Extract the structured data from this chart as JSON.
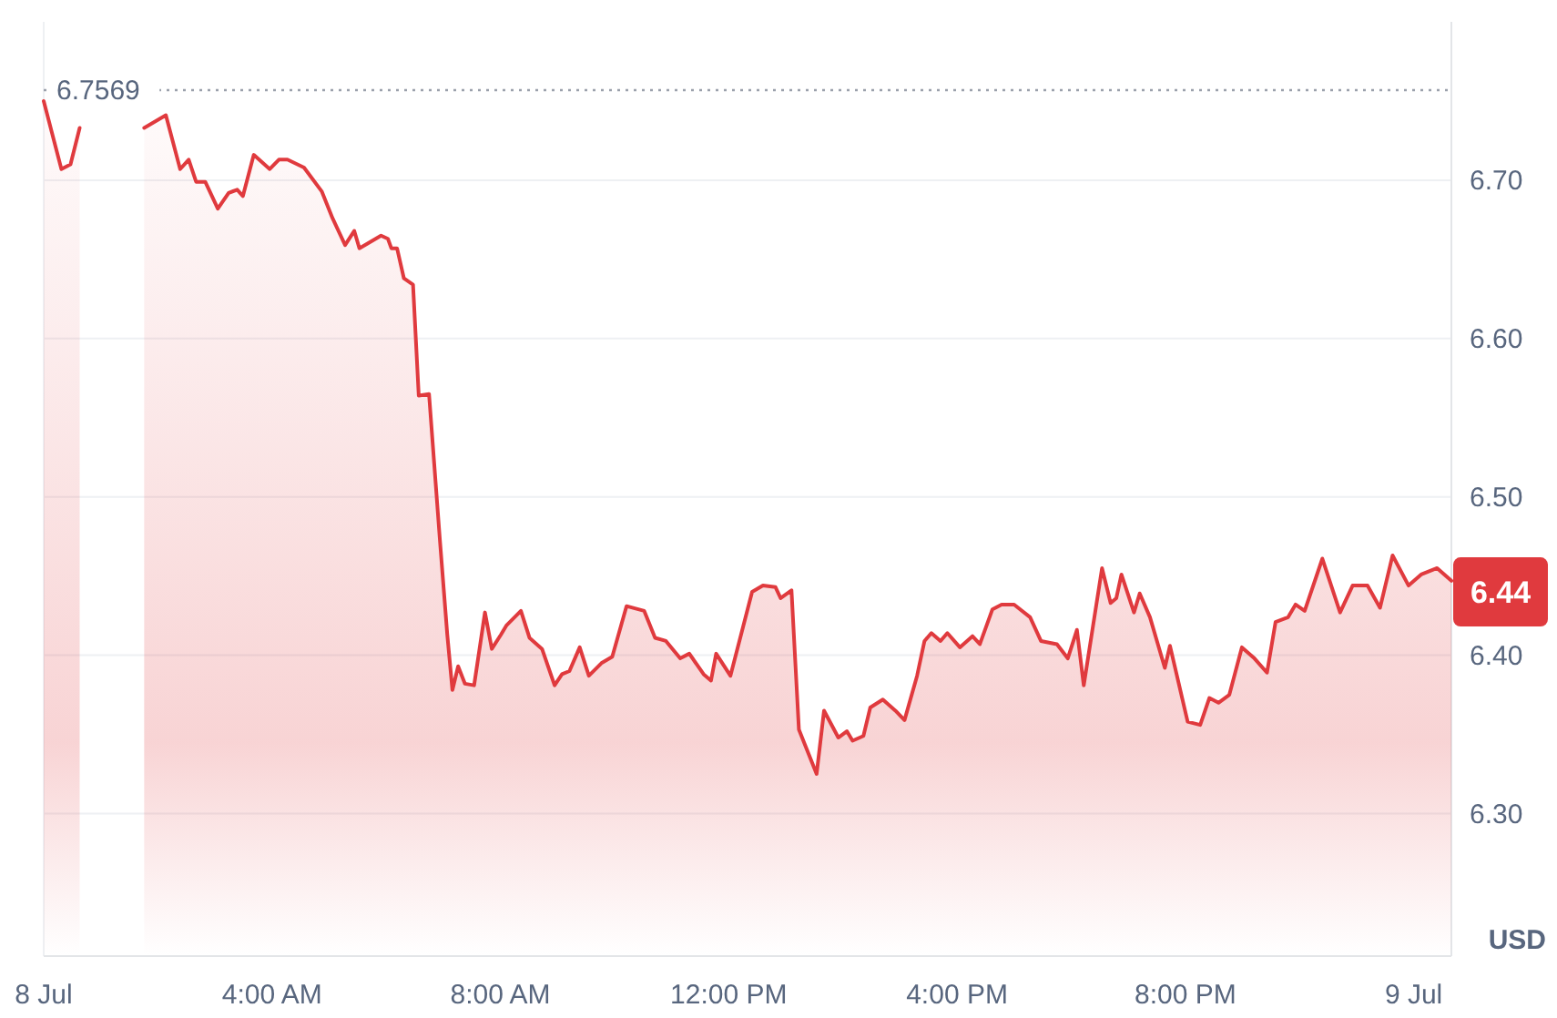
{
  "chart_data": {
    "type": "area",
    "ylabel": "USD",
    "xlim": [
      0,
      24.66
    ],
    "ylim": [
      6.21,
      6.8
    ],
    "xticks": [
      {
        "value": 0,
        "label": "8 Jul"
      },
      {
        "value": 4,
        "label": "4:00 AM"
      },
      {
        "value": 8,
        "label": "8:00 AM"
      },
      {
        "value": 12,
        "label": "12:00 PM"
      },
      {
        "value": 16,
        "label": "4:00 PM"
      },
      {
        "value": 20,
        "label": "8:00 PM"
      },
      {
        "value": 24,
        "label": "9 Jul"
      }
    ],
    "yticks": [
      {
        "value": 6.3,
        "label": "6.30"
      },
      {
        "value": 6.4,
        "label": "6.40"
      },
      {
        "value": 6.5,
        "label": "6.50"
      },
      {
        "value": 6.6,
        "label": "6.60"
      },
      {
        "value": 6.7,
        "label": "6.70"
      }
    ],
    "grid": "y",
    "ref_lines": [
      {
        "axis": "y",
        "value": 6.7569,
        "label": "6.7569",
        "color": "#9aa0ab",
        "line_style": "dotted"
      }
    ],
    "annotations": [
      {
        "text": "6.44",
        "x": 24.66,
        "y": 6.44
      }
    ],
    "series": [
      {
        "color": "#e03a3e",
        "x": [
          0,
          0.31,
          0.47,
          0.63,
          1.19,
          1.76,
          2.14,
          2.39,
          2.54,
          2.67,
          2.83,
          3.05,
          3.24,
          3.39,
          3.49,
          3.68,
          3.96,
          4.12,
          4.27,
          4.56,
          4.87,
          5.06,
          5.28,
          5.44,
          5.53,
          5.91,
          6.03,
          6.09,
          6.19,
          6.31,
          6.47,
          6.57,
          6.75,
          6.94,
          7.07,
          7.16,
          7.26,
          7.38,
          7.54,
          7.73,
          7.85,
          8.01,
          8.11,
          8.36,
          8.51,
          8.73,
          8.95,
          9.08,
          9.21,
          9.39,
          9.55,
          9.77,
          9.96,
          10.21,
          10.52,
          10.71,
          10.9,
          11.15,
          11.31,
          11.56,
          11.69,
          11.78,
          12.03,
          12.41,
          12.6,
          12.82,
          12.91,
          13.1,
          13.23,
          13.54,
          13.67,
          13.92,
          14.07,
          14.17,
          14.36,
          14.48,
          14.7,
          14.92,
          15.08,
          15.3,
          15.43,
          15.55,
          15.71,
          15.83,
          16.05,
          16.27,
          16.4,
          16.62,
          16.78,
          17,
          17.28,
          17.47,
          17.75,
          17.94,
          18.1,
          18.22,
          18.54,
          18.69,
          18.79,
          18.88,
          19.1,
          19.2,
          19.38,
          19.64,
          19.73,
          20.04,
          20.26,
          20.42,
          20.58,
          20.77,
          20.99,
          21.21,
          21.43,
          21.58,
          21.8,
          21.93,
          22.09,
          22.4,
          22.71,
          22.93,
          23.19,
          23.41,
          23.63,
          23.91,
          24.13,
          24.41,
          24.66
        ],
        "values": [
          6.75,
          6.707,
          6.71,
          6.733,
          null,
          6.733,
          6.741,
          6.707,
          6.713,
          6.699,
          6.699,
          6.682,
          6.692,
          6.694,
          6.69,
          6.716,
          6.707,
          6.713,
          6.713,
          6.708,
          6.693,
          6.676,
          6.659,
          6.668,
          6.657,
          6.665,
          6.663,
          6.657,
          6.657,
          6.638,
          6.634,
          6.564,
          6.565,
          6.473,
          6.413,
          6.378,
          6.393,
          6.382,
          6.381,
          6.427,
          6.404,
          6.413,
          6.419,
          6.428,
          6.411,
          6.404,
          6.381,
          6.388,
          6.39,
          6.405,
          6.387,
          6.395,
          6.399,
          6.431,
          6.428,
          6.411,
          6.409,
          6.398,
          6.401,
          6.388,
          6.384,
          6.401,
          6.387,
          6.44,
          6.444,
          6.443,
          6.436,
          6.441,
          6.353,
          6.325,
          6.365,
          6.348,
          6.352,
          6.346,
          6.349,
          6.367,
          6.372,
          6.365,
          6.359,
          6.387,
          6.409,
          6.414,
          6.409,
          6.414,
          6.405,
          6.412,
          6.407,
          6.429,
          6.432,
          6.432,
          6.424,
          6.409,
          6.407,
          6.398,
          6.416,
          6.381,
          6.455,
          6.433,
          6.436,
          6.451,
          6.427,
          6.439,
          6.424,
          6.392,
          6.406,
          6.358,
          6.356,
          6.373,
          6.37,
          6.375,
          6.405,
          6.398,
          6.389,
          6.421,
          6.424,
          6.432,
          6.428,
          6.461,
          6.427,
          6.444,
          6.444,
          6.43,
          6.463,
          6.444,
          6.451,
          6.455,
          6.447
        ]
      }
    ]
  }
}
